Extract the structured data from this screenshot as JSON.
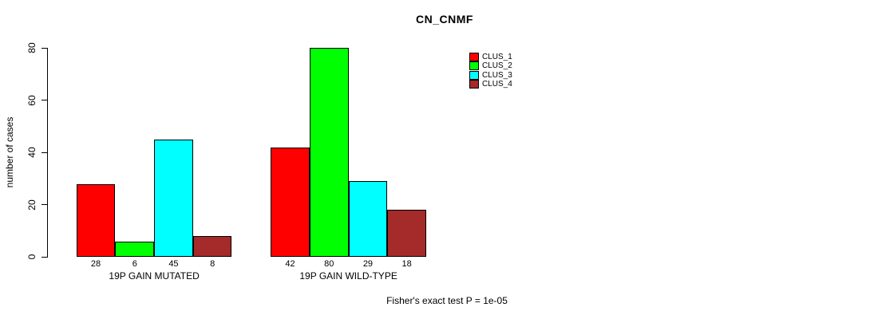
{
  "chart_data": {
    "type": "bar",
    "title": "CN_CNMF",
    "ylabel": "number of cases",
    "xlabel": "",
    "ylim": [
      0,
      80
    ],
    "yticks": [
      0,
      20,
      40,
      60,
      80
    ],
    "grid": false,
    "legend_position": "top-right",
    "categories": [
      "19P GAIN MUTATED",
      "19P GAIN WILD-TYPE"
    ],
    "series": [
      {
        "name": "CLUS_1",
        "color": "#FF0000",
        "values": [
          28,
          42
        ]
      },
      {
        "name": "CLUS_2",
        "color": "#00FF00",
        "values": [
          6,
          80
        ]
      },
      {
        "name": "CLUS_3",
        "color": "#00FFFF",
        "values": [
          45,
          29
        ]
      },
      {
        "name": "CLUS_4",
        "color": "#A52A2A",
        "values": [
          8,
          18
        ]
      }
    ],
    "bar_labels": [
      [
        28,
        6,
        45,
        8
      ],
      [
        42,
        80,
        29,
        18
      ]
    ],
    "annotation": "Fisher's exact test P = 1e-05"
  }
}
